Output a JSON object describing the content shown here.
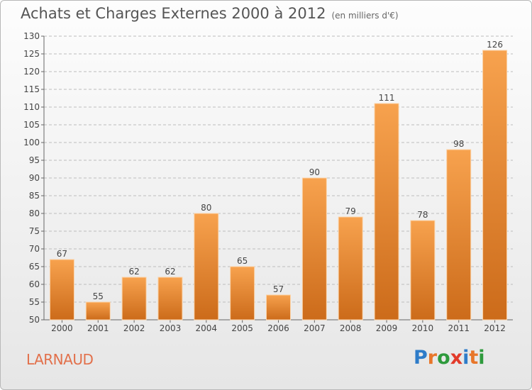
{
  "header": {
    "title": "Achats et Charges Externes 2000 à 2012",
    "unit": "(en milliers d'€)"
  },
  "footer": {
    "town": "LARNAUD",
    "logo_letters": [
      "P",
      "r",
      "o",
      "x",
      "i",
      "t",
      "i"
    ],
    "logo_colors": [
      "#2e7cc9",
      "#e8762a",
      "#2e9a3c",
      "#e23a2a",
      "#2e7cc9",
      "#e8762a",
      "#2e9a3c"
    ]
  },
  "colors": {
    "bar_top": "#f7a24e",
    "bar_bottom": "#cc6b1a",
    "grid": "#bdbdbd"
  },
  "chart_data": {
    "type": "bar",
    "title": "Achats et Charges Externes 2000 à 2012",
    "categories": [
      "2000",
      "2001",
      "2002",
      "2003",
      "2004",
      "2005",
      "2006",
      "2007",
      "2008",
      "2009",
      "2010",
      "2011",
      "2012"
    ],
    "values": [
      67,
      55,
      62,
      62,
      80,
      65,
      57,
      90,
      79,
      111,
      78,
      98,
      126
    ],
    "ylim": [
      50,
      130
    ],
    "yticks": [
      50,
      55,
      60,
      65,
      70,
      75,
      80,
      85,
      90,
      95,
      100,
      105,
      110,
      115,
      120,
      125,
      130
    ],
    "grid": true
  }
}
